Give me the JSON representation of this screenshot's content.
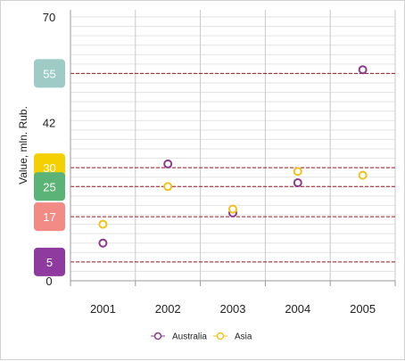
{
  "chart_data": {
    "type": "scatter",
    "categories": [
      "2001",
      "2002",
      "2003",
      "2004",
      "2005"
    ],
    "series": [
      {
        "name": "Australia",
        "color": "#8e3a8f",
        "values": [
          10,
          31,
          18,
          26,
          56
        ]
      },
      {
        "name": "Asia",
        "color": "#f2c21b",
        "values": [
          15,
          25,
          19,
          29,
          28
        ]
      }
    ],
    "ylabel": "Value, mln. Rub.",
    "xlabel": "",
    "ylim": [
      0,
      70
    ],
    "y_ticks": [
      "0",
      "42",
      "70"
    ],
    "reference_lines": [
      {
        "value": 55,
        "label": "55",
        "color": "#9ecbc6"
      },
      {
        "value": 30,
        "label": "30",
        "color": "#f5d000"
      },
      {
        "value": 25,
        "label": "25",
        "color": "#5cb377"
      },
      {
        "value": 17,
        "label": "17",
        "color": "#f28b86"
      },
      {
        "value": 5,
        "label": "5",
        "color": "#8e3a9f"
      }
    ],
    "reference_line_color": "#a01520",
    "grid": true,
    "legend_position": "bottom"
  }
}
